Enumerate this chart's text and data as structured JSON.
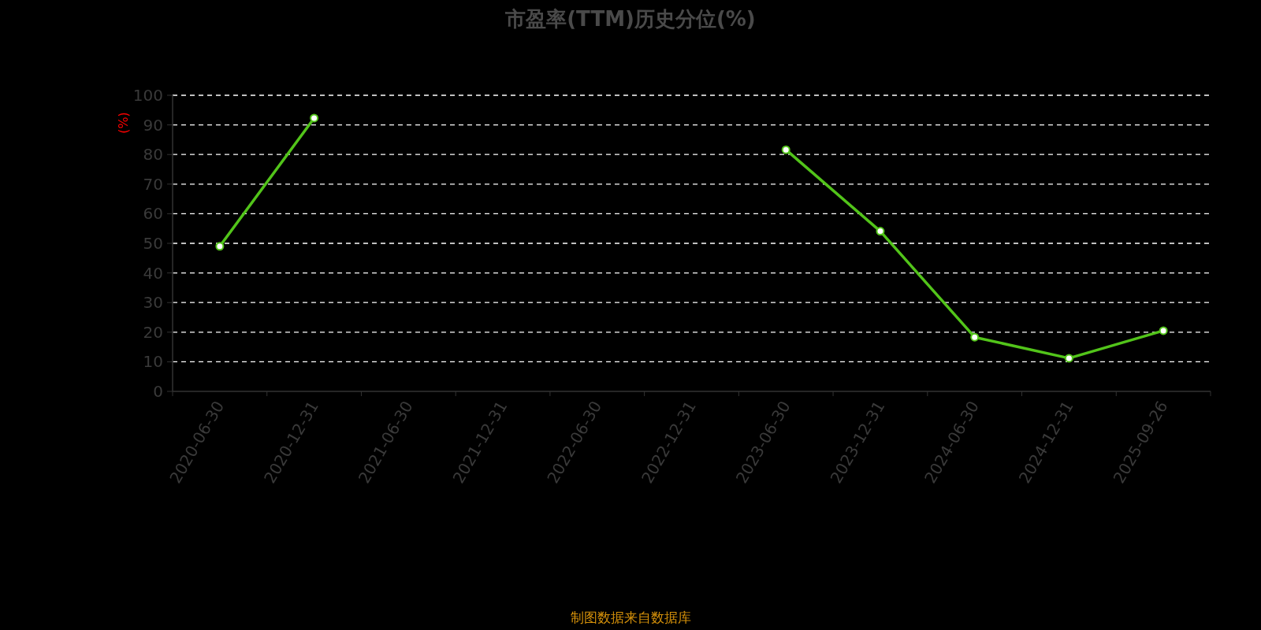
{
  "chart_data": {
    "type": "line",
    "title": "市盈率(TTM)历史分位(%)",
    "ylabel": "(%)",
    "annotations": [
      "制图数据来自数据库"
    ],
    "categories": [
      "2020-06-30",
      "2020-12-31",
      "2021-06-30",
      "2021-12-31",
      "2022-06-30",
      "2022-12-31",
      "2023-06-30",
      "2023-12-31",
      "2024-06-30",
      "2024-12-31",
      "2025-09-26"
    ],
    "series": [
      {
        "color": "#52c41a",
        "values": [
          49.0,
          92.3,
          null,
          null,
          null,
          null,
          81.6,
          54.1,
          18.3,
          11.2,
          20.5
        ]
      }
    ],
    "ylim": [
      0,
      100
    ],
    "yticks": [
      0,
      10,
      20,
      30,
      40,
      50,
      60,
      70,
      80,
      90,
      100
    ],
    "grid": "y",
    "marker": "circle",
    "line_style": "solid"
  }
}
